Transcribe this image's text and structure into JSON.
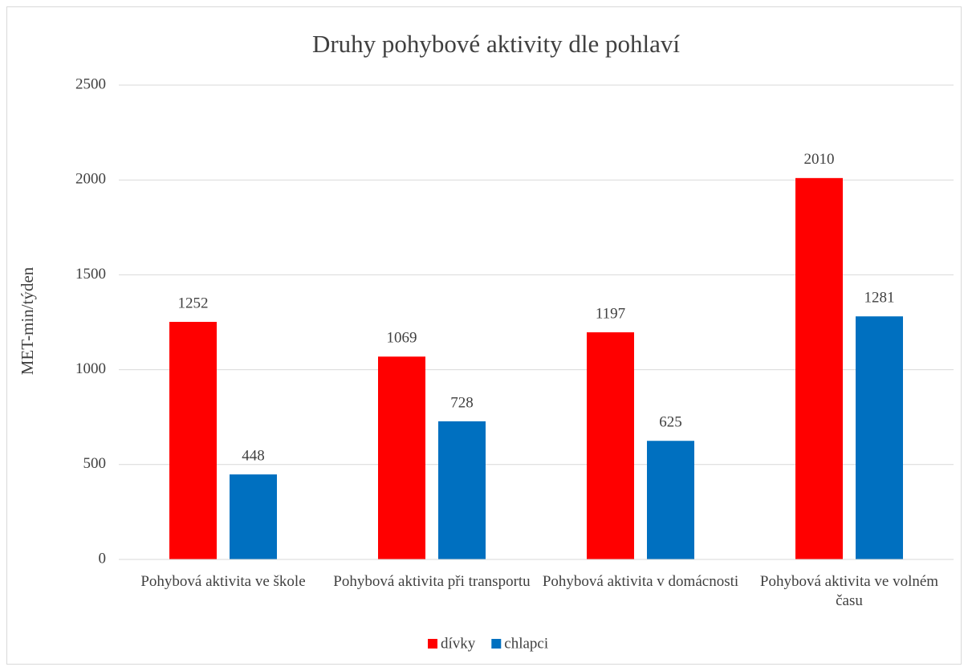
{
  "chart_data": {
    "type": "bar",
    "title": "Druhy pohybové aktivity dle pohlaví",
    "y_label": "MET-min/týden",
    "categories": [
      "Pohybová aktivita ve škole",
      "Pohybová aktivita při transportu",
      "Pohybová aktivita v domácnosti",
      "Pohybová aktivita ve volném času"
    ],
    "series": [
      {
        "name": "dívky",
        "color": "#ff0000",
        "values": [
          1252,
          1069,
          1197,
          2010
        ]
      },
      {
        "name": "chlapci",
        "color": "#0070c0",
        "values": [
          448,
          728,
          625,
          1281
        ]
      }
    ],
    "ylim": [
      0,
      2500
    ],
    "yticks": [
      0,
      500,
      1000,
      1500,
      2000,
      2500
    ],
    "grid": true,
    "legend": "bottom"
  }
}
